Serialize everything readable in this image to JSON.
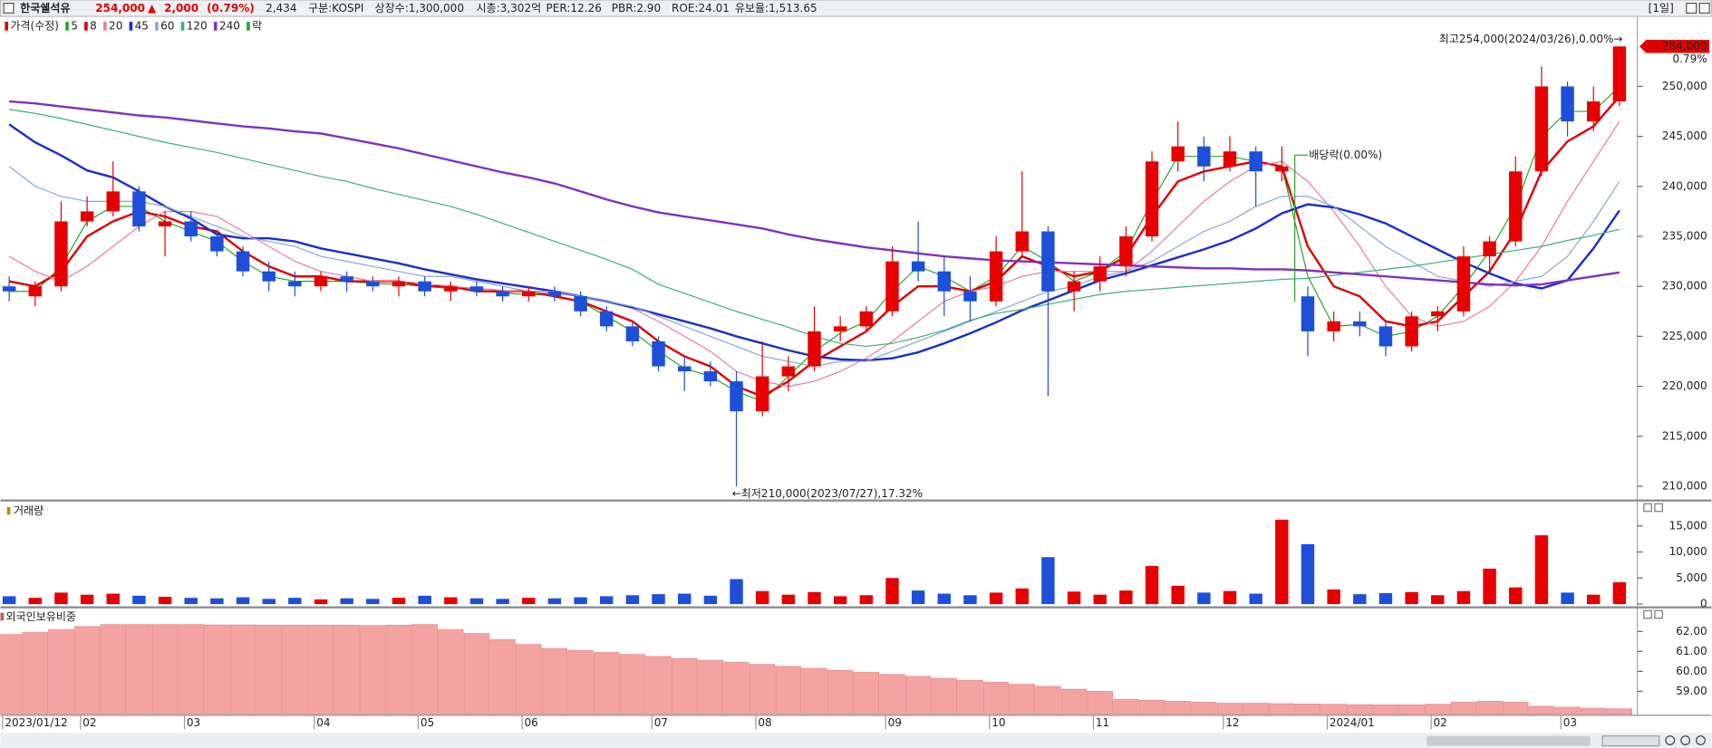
{
  "header": {
    "name": "한국쉘석유",
    "price": "254,000",
    "arrow": "▲",
    "change": "2,000",
    "change_pct": "(0.79%)",
    "volume": "2,434",
    "items": [
      "구분:KOSPI",
      "상장수:1,300,000",
      "시총:3,302억",
      "PER:12.26",
      "PBR:2.90",
      "ROE:24.01",
      "유보율:1,513.65"
    ],
    "period": "[1일]"
  },
  "chart_data": [
    {
      "type": "candlestick",
      "name": "가격(수정)",
      "up_color": "#e60000",
      "down_color": "#1d4fd8",
      "categories": [
        "2023/01/12",
        null,
        null,
        "02",
        null,
        null,
        null,
        "03",
        null,
        null,
        null,
        null,
        "04",
        null,
        null,
        null,
        "05",
        null,
        null,
        null,
        "06",
        null,
        null,
        null,
        null,
        "07",
        null,
        null,
        null,
        "08",
        null,
        null,
        null,
        null,
        "09",
        null,
        null,
        null,
        "10",
        null,
        null,
        null,
        "11",
        null,
        null,
        null,
        null,
        "12",
        null,
        null,
        null,
        "2024/01",
        null,
        null,
        null,
        "02",
        null,
        null,
        null,
        null,
        "03",
        null,
        null
      ],
      "open": [
        230000,
        229000,
        230000,
        236500,
        237500,
        239500,
        236000,
        236500,
        235000,
        233500,
        231500,
        230500,
        230000,
        231000,
        230500,
        230000,
        230500,
        229500,
        230000,
        229500,
        229000,
        229500,
        229000,
        227500,
        226000,
        224500,
        222000,
        221500,
        220500,
        217500,
        221000,
        222000,
        225500,
        226000,
        227500,
        232500,
        231500,
        229500,
        228500,
        233500,
        235500,
        229500,
        230500,
        232000,
        235000,
        242500,
        244000,
        242000,
        243500,
        241500,
        229000,
        225500,
        226500,
        226000,
        224000,
        227000,
        227500,
        233000,
        234500,
        241500,
        250000,
        246500,
        248500
      ],
      "high": [
        231000,
        230500,
        238500,
        239000,
        242500,
        240000,
        237500,
        237500,
        235500,
        234000,
        232500,
        231500,
        231500,
        231500,
        231000,
        231000,
        231000,
        230500,
        230500,
        230000,
        230000,
        230000,
        229500,
        228000,
        226500,
        225000,
        223000,
        222500,
        221500,
        224500,
        223000,
        228000,
        227000,
        228000,
        234000,
        236500,
        233000,
        231000,
        235000,
        241500,
        236000,
        231500,
        233000,
        236000,
        243500,
        246500,
        245000,
        245000,
        244000,
        244000,
        230000,
        227500,
        227500,
        226500,
        227500,
        228000,
        234000,
        235000,
        243000,
        252000,
        250500,
        250000,
        254000
      ],
      "low": [
        228500,
        228000,
        229500,
        236000,
        237000,
        235500,
        233000,
        234500,
        233000,
        231000,
        229500,
        229000,
        229500,
        229500,
        229500,
        229000,
        229000,
        228500,
        229000,
        228500,
        228500,
        228500,
        227000,
        225500,
        224000,
        221500,
        219500,
        220000,
        210000,
        217000,
        219500,
        221500,
        224500,
        225500,
        227000,
        230500,
        227000,
        226500,
        228000,
        233000,
        219000,
        227500,
        229500,
        231000,
        234500,
        241500,
        240500,
        241500,
        238000,
        240500,
        223000,
        224500,
        225000,
        223000,
        223500,
        225500,
        227000,
        231500,
        234000,
        241000,
        245000,
        245500,
        248000
      ],
      "close": [
        229500,
        230000,
        236500,
        237500,
        239500,
        236000,
        236500,
        235000,
        233500,
        231500,
        230500,
        230000,
        231000,
        230500,
        230000,
        230500,
        229500,
        230000,
        229500,
        229000,
        229500,
        229000,
        227500,
        226000,
        224500,
        222000,
        221500,
        220500,
        217500,
        221000,
        222000,
        225500,
        226000,
        227500,
        232500,
        231500,
        229500,
        228500,
        233500,
        235500,
        229500,
        230500,
        232000,
        235000,
        242500,
        244000,
        242000,
        243500,
        241500,
        242000,
        225500,
        226500,
        226000,
        224000,
        227000,
        227500,
        233000,
        234500,
        241500,
        250000,
        246500,
        248500,
        254000
      ],
      "series": [
        {
          "name": "5",
          "color": "#2aa52a",
          "values": [
            229500,
            229500,
            232000,
            236500,
            238000,
            238000,
            236500,
            235500,
            234500,
            232500,
            231000,
            230500,
            230500,
            230500,
            230300,
            230200,
            230000,
            229800,
            229700,
            229300,
            229200,
            229100,
            228500,
            227000,
            225500,
            223500,
            221800,
            221000,
            219500,
            218500,
            221000,
            223500,
            225300,
            226500,
            229500,
            232000,
            231000,
            229500,
            231000,
            234000,
            232500,
            230500,
            231500,
            233500,
            238500,
            243000,
            243000,
            243000,
            242500,
            242000,
            231000,
            226000,
            226200,
            225000,
            225500,
            227000,
            230000,
            233500,
            238000,
            245000,
            247500,
            247500,
            250000
          ]
        },
        {
          "name": "8",
          "color": "#dd0000",
          "values": [
            230500,
            230000,
            231500,
            235000,
            236500,
            237500,
            237000,
            236000,
            235500,
            233500,
            232000,
            231000,
            231000,
            230500,
            230500,
            230500,
            230000,
            230000,
            229500,
            229500,
            229500,
            229000,
            228500,
            227500,
            226500,
            224500,
            223000,
            222000,
            220000,
            219000,
            220500,
            222500,
            224000,
            225500,
            228000,
            230000,
            230000,
            229500,
            230500,
            233000,
            232000,
            231000,
            231500,
            233000,
            237000,
            240500,
            241500,
            242000,
            242500,
            242000,
            234000,
            230000,
            229000,
            226500,
            226000,
            226500,
            229000,
            231500,
            235500,
            241500,
            244500,
            246000,
            249000
          ]
        },
        {
          "name": "20",
          "color": "#e77ca0",
          "values": [
            233000,
            231500,
            230500,
            232000,
            234000,
            236000,
            237500,
            237500,
            237000,
            235500,
            234000,
            232500,
            231500,
            231000,
            230500,
            230500,
            230300,
            230000,
            229800,
            229600,
            229400,
            229300,
            229000,
            228500,
            227800,
            226500,
            225000,
            223500,
            221500,
            220500,
            220000,
            220500,
            221500,
            222800,
            224500,
            226500,
            228500,
            229500,
            230000,
            231000,
            231500,
            231500,
            231500,
            231500,
            233500,
            236000,
            238500,
            240500,
            242000,
            242500,
            240500,
            237500,
            234000,
            230000,
            227000,
            226000,
            226500,
            228000,
            230500,
            234000,
            238500,
            242500,
            246500
          ]
        },
        {
          "name": "45",
          "color": "#1a2ec8",
          "values": [
            246200,
            244400,
            243100,
            241600,
            240900,
            239500,
            238000,
            236800,
            235200,
            234800,
            234800,
            234500,
            233800,
            233300,
            232800,
            232300,
            231700,
            231200,
            230700,
            230300,
            229900,
            229500,
            229000,
            228500,
            227900,
            227200,
            226500,
            225800,
            225000,
            224300,
            223600,
            223000,
            222700,
            222600,
            222800,
            223400,
            224300,
            225300,
            226400,
            227600,
            228600,
            229600,
            230600,
            231300,
            232100,
            232900,
            233700,
            234600,
            235800,
            237300,
            238200,
            237900,
            237200,
            236300,
            235000,
            233700,
            232400,
            231300,
            230300,
            229800,
            230600,
            233800,
            237600
          ]
        },
        {
          "name": "60",
          "color": "#8aa6d6",
          "values": [
            242000,
            240000,
            239000,
            238500,
            238500,
            238500,
            238000,
            237000,
            236000,
            235000,
            234500,
            234000,
            233000,
            232500,
            232000,
            231500,
            231000,
            231000,
            230500,
            230000,
            229500,
            229500,
            229000,
            228500,
            228000,
            227000,
            226000,
            225000,
            224000,
            223000,
            222500,
            222000,
            222500,
            222500,
            223500,
            224500,
            225500,
            226500,
            227500,
            228500,
            229500,
            230000,
            231000,
            231500,
            232500,
            234000,
            235500,
            236500,
            238000,
            239000,
            239000,
            238000,
            236000,
            234000,
            232500,
            231000,
            230500,
            230000,
            230500,
            231000,
            233000,
            236500,
            240500
          ]
        },
        {
          "name": "120",
          "color": "#3fae78",
          "values": [
            247700,
            247300,
            246800,
            246200,
            245600,
            245000,
            244400,
            243900,
            243400,
            242800,
            242200,
            241600,
            241000,
            240500,
            239800,
            239200,
            238600,
            238000,
            237200,
            236300,
            235400,
            234500,
            233600,
            232700,
            231700,
            230200,
            229300,
            228400,
            227500,
            226700,
            225900,
            225000,
            224300,
            224000,
            224300,
            224900,
            225600,
            226600,
            227300,
            227700,
            228200,
            228700,
            229200,
            229500,
            229700,
            229900,
            230100,
            230300,
            230500,
            230700,
            230800,
            231100,
            231400,
            231700,
            232000,
            232400,
            232800,
            233200,
            233600,
            234000,
            234600,
            235100,
            235700
          ]
        },
        {
          "name": "240",
          "color": "#8030c0",
          "values": [
            248500,
            248300,
            248000,
            247700,
            247400,
            247100,
            246900,
            246600,
            246300,
            246000,
            245800,
            245500,
            245300,
            244800,
            244300,
            243800,
            243200,
            242600,
            242000,
            241400,
            240900,
            240300,
            239500,
            238700,
            238000,
            237400,
            237000,
            236600,
            236200,
            235800,
            235200,
            234700,
            234300,
            233900,
            233600,
            233300,
            233000,
            232800,
            232600,
            232500,
            232400,
            232300,
            232200,
            232100,
            232000,
            231900,
            231800,
            231800,
            231700,
            231700,
            231600,
            231400,
            231200,
            231000,
            230800,
            230600,
            230400,
            230200,
            230100,
            230200,
            230600,
            231000,
            231400
          ]
        }
      ],
      "dividend": {
        "legend": "락",
        "label": "배당락(0.00%)",
        "color": "#2aa52a"
      },
      "high_label": "최고254,000(2024/03/26),0.00%→",
      "low_label": "←최저210,000(2023/07/27),17.32%",
      "last_label": "254,000",
      "last_change": "0.79%",
      "ylim": [
        208800,
        256900
      ],
      "yticks": [
        {
          "value": 210000,
          "label": "210,000"
        },
        {
          "value": 215000,
          "label": "215,000"
        },
        {
          "value": 220000,
          "label": "220,000"
        },
        {
          "value": 225000,
          "label": "225,000"
        },
        {
          "value": 230000,
          "label": "230,000"
        },
        {
          "value": 235000,
          "label": "235,000"
        },
        {
          "value": 240000,
          "label": "240,000"
        },
        {
          "value": 245000,
          "label": "245,000"
        },
        {
          "value": 250000,
          "label": "250,000"
        }
      ]
    },
    {
      "type": "bar",
      "title": "거래량",
      "values": [
        1500,
        1200,
        2200,
        1800,
        2000,
        1600,
        1400,
        1200,
        1100,
        1300,
        1000,
        1200,
        900,
        1100,
        1000,
        1200,
        1600,
        1300,
        1100,
        1000,
        1200,
        1100,
        1300,
        1500,
        1700,
        1900,
        2000,
        1600,
        4800,
        2500,
        1800,
        2300,
        1500,
        1700,
        5000,
        2600,
        2000,
        1700,
        2200,
        3000,
        9000,
        2400,
        1800,
        2600,
        7300,
        3500,
        2200,
        2500,
        2000,
        16200,
        11500,
        2800,
        1900,
        2100,
        2300,
        1700,
        2500,
        6800,
        3200,
        13200,
        2200,
        1800,
        4200
      ],
      "ylim": [
        0,
        18000
      ],
      "yticks": [
        0,
        {
          "value": 5000,
          "label": "5,000"
        },
        {
          "value": 10000,
          "label": "10,000"
        },
        {
          "value": 15000,
          "label": "15,000"
        }
      ]
    },
    {
      "type": "bar",
      "title": "외국인보유비중",
      "color": "#f4a3a3",
      "values": [
        61.85,
        61.95,
        62.1,
        62.25,
        62.35,
        62.35,
        62.35,
        62.35,
        62.33,
        62.33,
        62.32,
        62.32,
        62.32,
        62.32,
        62.3,
        62.32,
        62.35,
        62.1,
        61.9,
        61.6,
        61.35,
        61.15,
        61.05,
        60.95,
        60.85,
        60.75,
        60.65,
        60.55,
        60.45,
        60.35,
        60.25,
        60.15,
        60.05,
        59.95,
        59.85,
        59.75,
        59.65,
        59.55,
        59.45,
        59.35,
        59.25,
        59.1,
        59.0,
        58.6,
        58.55,
        58.5,
        58.45,
        58.4,
        58.4,
        58.38,
        58.36,
        58.35,
        58.33,
        58.32,
        58.32,
        58.35,
        58.45,
        58.5,
        58.45,
        58.25,
        58.2,
        58.15,
        58.12
      ],
      "ylim": [
        57.85,
        63.05
      ],
      "yticks": [
        {
          "value": 59,
          "label": "59.00"
        },
        {
          "value": 60,
          "label": "60.00"
        },
        {
          "value": 61,
          "label": "61.00"
        },
        {
          "value": 62,
          "label": "62.00"
        }
      ]
    }
  ]
}
